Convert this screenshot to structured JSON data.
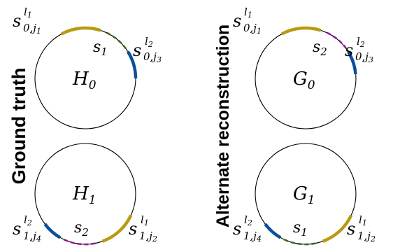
{
  "side_labels": {
    "left": "Ground truth",
    "right": "Alternate reconstruction"
  },
  "colors": {
    "gold": "#b89a12",
    "blue": "#0b4f9a",
    "green": "#3a6b1c",
    "purple": "#9a1a9a",
    "circle": "#000000"
  },
  "panels": [
    {
      "id": "ground-truth-top",
      "center": {
        "base": "H",
        "sub": "0"
      },
      "label_a": {
        "base": "s",
        "sub": "0,j",
        "subsub": "1",
        "sup": "l",
        "supsub": "1"
      },
      "label_b": {
        "base": "s",
        "sub": "0,j",
        "subsub": "3",
        "sup": "l",
        "supsub": "2"
      },
      "dashed": {
        "base": "s",
        "sub": "1"
      }
    },
    {
      "id": "ground-truth-bottom",
      "center": {
        "base": "H",
        "sub": "1"
      },
      "label_a": {
        "base": "s",
        "sub": "1,j",
        "subsub": "4",
        "sup": "l",
        "supsub": "2"
      },
      "label_b": {
        "base": "s",
        "sub": "1,j",
        "subsub": "2",
        "sup": "l",
        "supsub": "1"
      },
      "dashed": {
        "base": "s",
        "sub": "2"
      }
    },
    {
      "id": "alternate-top",
      "center": {
        "base": "G",
        "sub": "0"
      },
      "label_a": {
        "base": "s",
        "sub": "0,j",
        "subsub": "1",
        "sup": "l",
        "supsub": "1"
      },
      "label_b": {
        "base": "s",
        "sub": "0,j",
        "subsub": "3",
        "sup": "l",
        "supsub": "2"
      },
      "dashed": {
        "base": "s",
        "sub": "2"
      }
    },
    {
      "id": "alternate-bottom",
      "center": {
        "base": "G",
        "sub": "1"
      },
      "label_a": {
        "base": "s",
        "sub": "1,j",
        "subsub": "4",
        "sup": "l",
        "supsub": "2"
      },
      "label_b": {
        "base": "s",
        "sub": "1,j",
        "subsub": "2",
        "sup": "l",
        "supsub": "1"
      },
      "dashed": {
        "base": "s",
        "sub": "1"
      }
    }
  ]
}
